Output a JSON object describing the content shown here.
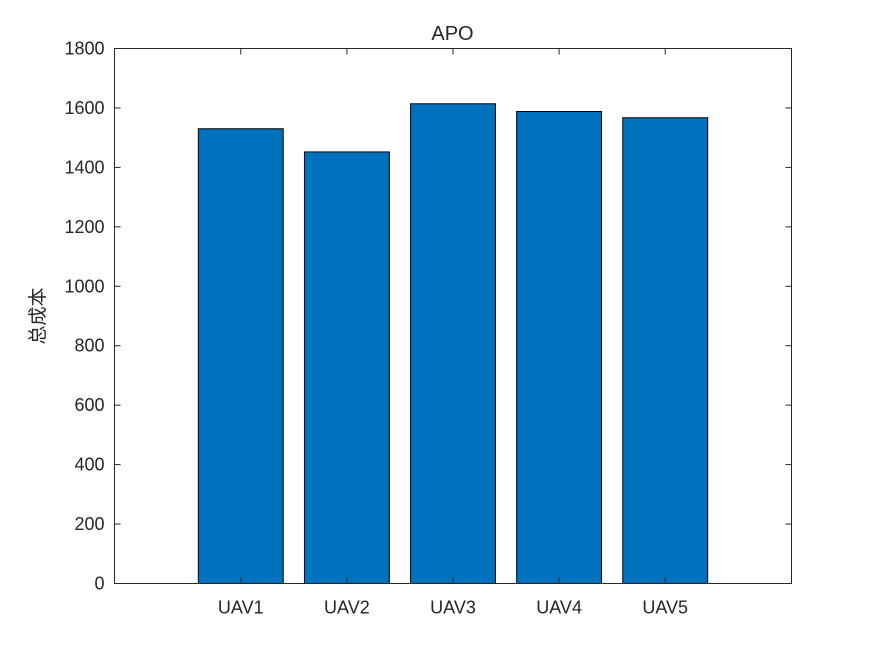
{
  "chart_data": {
    "type": "bar",
    "title": "APO",
    "xlabel": "",
    "ylabel": "总成本",
    "categories": [
      "UAV1",
      "UAV2",
      "UAV3",
      "UAV4",
      "UAV5"
    ],
    "values": [
      1530,
      1452,
      1614,
      1588,
      1567
    ],
    "ylim": [
      0,
      1800
    ],
    "yticks": [
      0,
      200,
      400,
      600,
      800,
      1000,
      1200,
      1400,
      1600,
      1800
    ],
    "grid": false,
    "bar_color": "#0072BD",
    "edge_color": "#000000"
  }
}
